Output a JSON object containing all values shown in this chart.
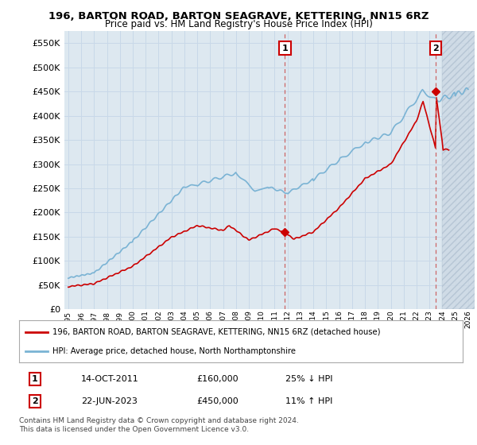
{
  "title": "196, BARTON ROAD, BARTON SEAGRAVE, KETTERING, NN15 6RZ",
  "subtitle": "Price paid vs. HM Land Registry's House Price Index (HPI)",
  "legend_line1": "196, BARTON ROAD, BARTON SEAGRAVE, KETTERING, NN15 6RZ (detached house)",
  "legend_line2": "HPI: Average price, detached house, North Northamptonshire",
  "annotation1_label": "1",
  "annotation1_date": "14-OCT-2011",
  "annotation1_price": "£160,000",
  "annotation1_hpi": "25% ↓ HPI",
  "annotation2_label": "2",
  "annotation2_date": "22-JUN-2023",
  "annotation2_price": "£450,000",
  "annotation2_hpi": "11% ↑ HPI",
  "footer": "Contains HM Land Registry data © Crown copyright and database right 2024.\nThis data is licensed under the Open Government Licence v3.0.",
  "hpi_color": "#7ab3d4",
  "price_color": "#cc0000",
  "vline_color": "#cc6666",
  "grid_color": "#c8d8e8",
  "background_color": "#ffffff",
  "plot_bg_color": "#dde8f0",
  "hatch_bg_color": "#ccd8e4",
  "ylim": [
    0,
    575000
  ],
  "yticks": [
    0,
    50000,
    100000,
    150000,
    200000,
    250000,
    300000,
    350000,
    400000,
    450000,
    500000,
    550000
  ],
  "marker1_x": 2011.79,
  "marker1_y": 160000,
  "marker2_x": 2023.47,
  "marker2_y": 450000,
  "hatch_start_x": 2024.0,
  "xlim_left": 1994.7,
  "xlim_right": 2026.5
}
